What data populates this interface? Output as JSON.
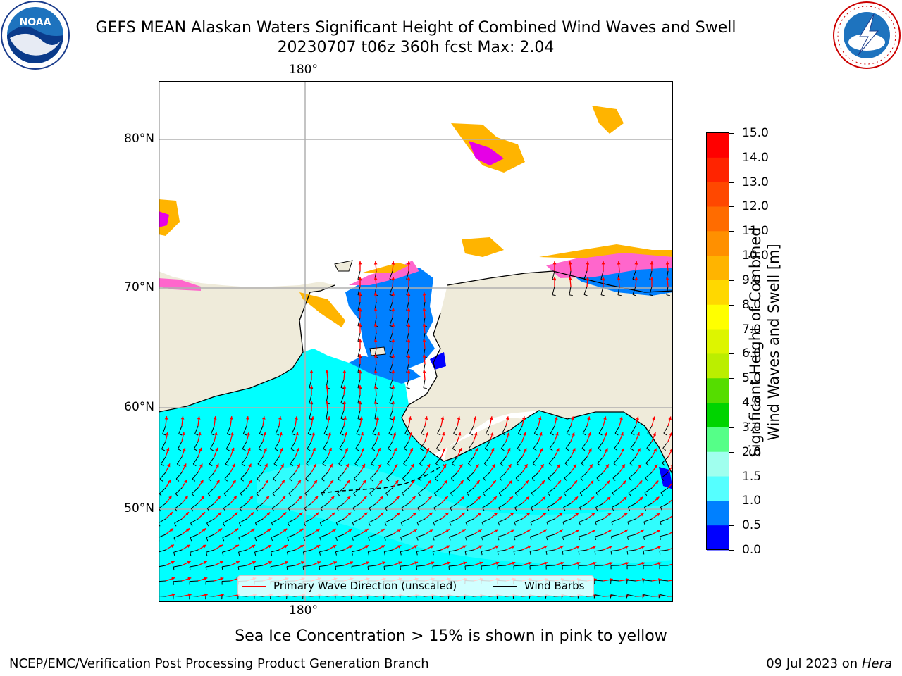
{
  "header": {
    "title": "GEFS MEAN Alaskan Waters Significant Height of Combined Wind Waves and Swell",
    "subtitle": "20230707 t06z 360h fcst   Max: 2.04"
  },
  "logos": {
    "left": {
      "name": "noaa-logo",
      "text": "NOAA",
      "ring_text": "NATIONAL OCEANIC AND ATMOSPHERIC ADMINISTRATION · U.S. DEPARTMENT OF COMMERCE"
    },
    "right": {
      "name": "nws-logo",
      "ring_text": "NATIONAL WEATHER SERVICE"
    }
  },
  "map": {
    "lon_labels": [
      "180°",
      "180°"
    ],
    "lat_labels": [
      "80°N",
      "70°N",
      "60°N",
      "50°N"
    ],
    "colors": {
      "land": "#efebda",
      "ocean_main": "#00ffff",
      "ocean_light": "#3cfdfd",
      "shallow": "#0080ff",
      "deep": "#0000ff",
      "ice_orange": "#ffb400",
      "ice_pink": "#ff66cc",
      "ice_magenta": "#e600e6",
      "ice_light": "#ffd27a",
      "grid": "#b0b0b0",
      "wave_arrow": "#ff0000",
      "barb": "#000000"
    }
  },
  "legend": {
    "items": [
      {
        "label": "Primary Wave Direction (unscaled)",
        "color": "#ff0000"
      },
      {
        "label": "Wind Barbs",
        "color": "#000000"
      }
    ]
  },
  "colorbar": {
    "label_line1": "Significant Height of Combined",
    "label_line2": "Wind Waves and Swell [m]",
    "ticks": [
      "15.0",
      "14.0",
      "13.0",
      "12.0",
      "11.0",
      "10.0",
      "9.0",
      "8.0",
      "7.0",
      "6.0",
      "5.0",
      "4.0",
      "3.0",
      "2.0",
      "1.5",
      "1.0",
      "0.5",
      "0.0"
    ],
    "colors_top_to_bottom": [
      "#ff0000",
      "#ff2400",
      "#ff4800",
      "#ff6c00",
      "#ff9000",
      "#ffb400",
      "#ffd800",
      "#ffff00",
      "#ddf500",
      "#bbee00",
      "#88e000",
      "#55dd00",
      "#00d400",
      "#00cc44",
      "#55ff88",
      "#a0ffee",
      "#55ffff",
      "#00ffff",
      "#0080ff",
      "#0000ff"
    ]
  },
  "footer": {
    "note": "Sea Ice Concentration > 15% is shown in pink to yellow",
    "left": "NCEP/EMC/Verification Post Processing Product Generation Branch",
    "right_date": "09 Jul 2023 on ",
    "right_system": "Hera"
  }
}
